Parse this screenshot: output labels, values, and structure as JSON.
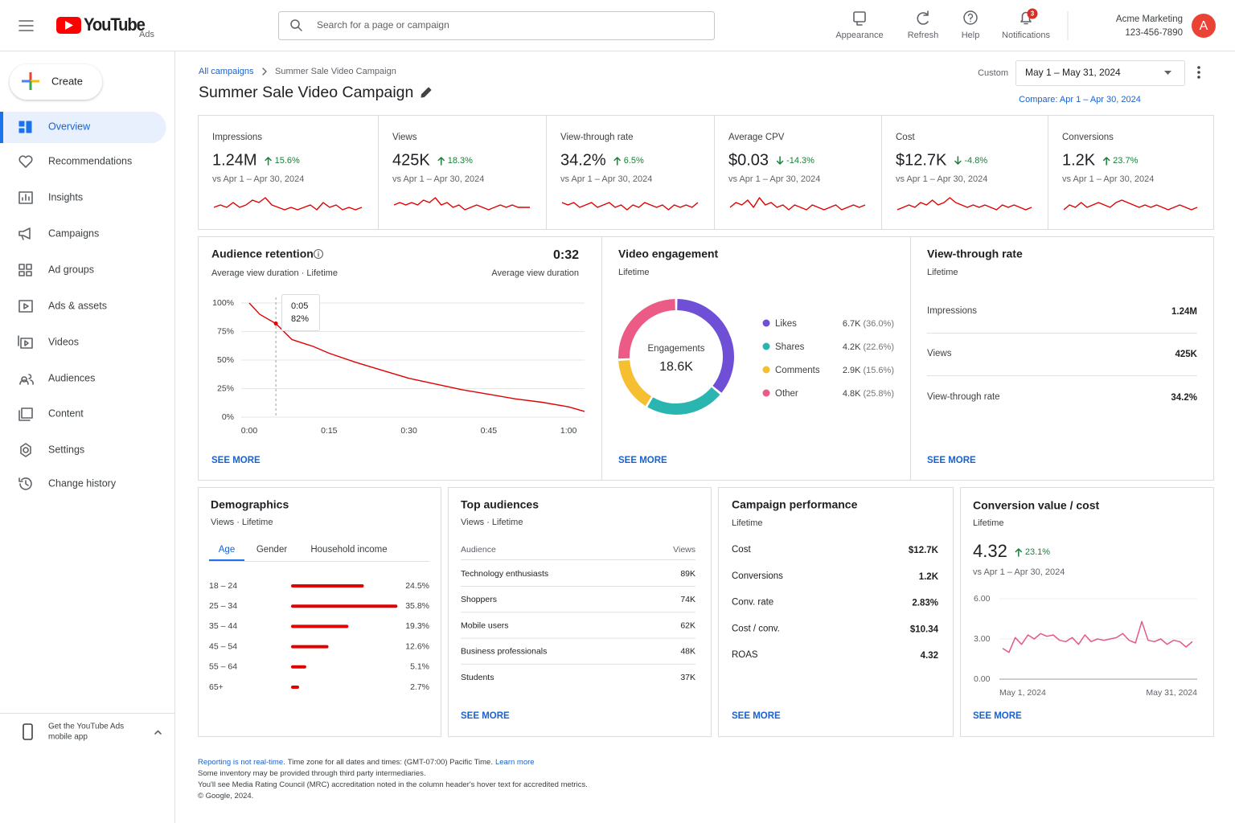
{
  "header": {
    "logo": "YouTube",
    "product": "Ads",
    "search_placeholder": "Search for a page or campaign",
    "actions": [
      {
        "label": "Appearance"
      },
      {
        "label": "Refresh"
      },
      {
        "label": "Help"
      },
      {
        "label": "Notifications",
        "badge": 3
      }
    ],
    "account_name": "Acme Marketing",
    "account_id": "123-456-7890",
    "avatar": "A"
  },
  "sidebar": {
    "create": "Create",
    "nav": [
      {
        "label": "Overview",
        "active": true
      },
      {
        "label": "Recommendations",
        "active": false
      },
      {
        "label": "Insights",
        "active": false
      },
      {
        "label": "Campaigns",
        "active": false
      },
      {
        "label": "Ad groups",
        "active": false
      },
      {
        "label": "Ads & assets",
        "active": false
      },
      {
        "label": "Videos",
        "active": false
      },
      {
        "label": "Audiences",
        "active": false
      },
      {
        "label": "Content",
        "active": false
      },
      {
        "label": "Settings",
        "active": false
      },
      {
        "label": "Change history",
        "active": false
      }
    ],
    "app_promo": [
      "Get the YouTube Ads",
      "mobile app"
    ]
  },
  "breadcrumb": [
    "All campaigns",
    "Summer Sale Video Campaign"
  ],
  "title": "Summer Sale Video Campaign",
  "date_range": {
    "label": "Custom",
    "value": "May 1 – May 31, 2024",
    "compare": "Compare: Apr 1 – Apr 30, 2024"
  },
  "kpi_change_color": "#188038",
  "kpis": [
    {
      "label": "Impressions",
      "value": "1.24M",
      "change": 15.6,
      "change_label": "15.6%",
      "comparison": "vs Apr 1 – Apr 30, 2024",
      "sparkline": {
        "ylim": [
          0,
          10
        ],
        "color": "#e00000",
        "values": [
          4,
          5,
          4,
          6,
          4,
          5,
          7,
          6,
          8,
          5,
          4,
          3,
          4,
          3,
          4,
          5,
          3,
          6,
          4,
          5,
          3,
          4,
          3,
          4
        ]
      }
    },
    {
      "label": "Views",
      "value": "425K",
      "change": 18.3,
      "change_label": "18.3%",
      "comparison": "vs Apr 1 – Apr 30, 2024",
      "sparkline": {
        "ylim": [
          0,
          10
        ],
        "color": "#e00000",
        "values": [
          5,
          6,
          5,
          6,
          5,
          7,
          6,
          8,
          5,
          6,
          4,
          5,
          3,
          4,
          5,
          4,
          3,
          4,
          5,
          4,
          5,
          4,
          4,
          4
        ]
      }
    },
    {
      "label": "View-through rate",
      "value": "34.2%",
      "change": 6.5,
      "change_label": "6.5%",
      "comparison": "vs Apr 1 – Apr 30, 2024",
      "sparkline": {
        "ylim": [
          0,
          10
        ],
        "color": "#e00000",
        "values": [
          6,
          5,
          6,
          4,
          5,
          6,
          4,
          5,
          6,
          4,
          5,
          3,
          5,
          4,
          6,
          5,
          4,
          5,
          3,
          5,
          4,
          5,
          4,
          6
        ]
      }
    },
    {
      "label": "Average CPV",
      "value": "$0.03",
      "change": -14.3,
      "change_label": "-14.3%",
      "comparison": "vs Apr 1 – Apr 30, 2024",
      "sparkline": {
        "ylim": [
          0,
          10
        ],
        "color": "#e00000",
        "values": [
          4,
          6,
          5,
          7,
          4,
          8,
          5,
          6,
          4,
          5,
          3,
          5,
          4,
          3,
          5,
          4,
          3,
          4,
          5,
          3,
          4,
          5,
          4,
          5
        ]
      }
    },
    {
      "label": "Cost",
      "value": "$12.7K",
      "change": -4.8,
      "change_label": "-4.8%",
      "comparison": "vs Apr 1 – Apr 30, 2024",
      "sparkline": {
        "ylim": [
          0,
          10
        ],
        "color": "#e00000",
        "values": [
          3,
          4,
          5,
          4,
          6,
          5,
          7,
          5,
          6,
          8,
          6,
          5,
          4,
          5,
          4,
          5,
          4,
          3,
          5,
          4,
          5,
          4,
          3,
          4
        ]
      }
    },
    {
      "label": "Conversions",
      "value": "1.2K",
      "change": 23.7,
      "change_label": "23.7%",
      "comparison": "vs Apr 1 – Apr 30, 2024",
      "sparkline": {
        "ylim": [
          0,
          10
        ],
        "color": "#e00000",
        "values": [
          3,
          5,
          4,
          6,
          4,
          5,
          6,
          5,
          4,
          6,
          7,
          6,
          5,
          4,
          5,
          4,
          5,
          4,
          3,
          4,
          5,
          4,
          3,
          4
        ]
      }
    }
  ],
  "retention": {
    "title": "Audience retention",
    "subtitle": "Average view duration · Lifetime",
    "summary_value": "0:32",
    "summary_label": "Average view duration",
    "chart": {
      "type": "line",
      "color": "#e00000",
      "x": [
        0,
        2,
        5,
        8,
        12,
        15,
        20,
        25,
        30,
        35,
        40,
        45,
        50,
        55,
        60,
        63
      ],
      "values": [
        100,
        90,
        82,
        68,
        62,
        56,
        48,
        41,
        34,
        29,
        24,
        20,
        16,
        13,
        9,
        5
      ],
      "xlim": [
        0,
        63
      ],
      "ylim": [
        0,
        100
      ],
      "xticks": [
        {
          "value": 0,
          "label": "0:00"
        },
        {
          "value": 15,
          "label": "0:15"
        },
        {
          "value": 30,
          "label": "0:30"
        },
        {
          "value": 45,
          "label": "0:45"
        },
        {
          "value": 60,
          "label": "1:00"
        }
      ],
      "yticks": [
        {
          "value": 0,
          "label": "0%"
        },
        {
          "value": 25,
          "label": "25%"
        },
        {
          "value": 50,
          "label": "50%"
        },
        {
          "value": 75,
          "label": "75%"
        },
        {
          "value": 100,
          "label": "100%"
        }
      ],
      "grid": true,
      "tooltip": {
        "x": 5,
        "x_label": "0:05",
        "value": 82,
        "value_label": "82%"
      }
    },
    "link": "SEE MORE"
  },
  "engagement": {
    "title": "Video engagement",
    "subtitle": "Lifetime",
    "center_label": "Engagements",
    "center_value": "18.6K",
    "chart": {
      "type": "pie",
      "series": [
        {
          "name": "Likes",
          "color": "#6f4fd6",
          "count": "6.7K",
          "value": 36.0,
          "value_label": "(36.0%)"
        },
        {
          "name": "Shares",
          "color": "#2bb5b0",
          "count": "4.2K",
          "value": 22.6,
          "value_label": "(22.6%)"
        },
        {
          "name": "Comments",
          "color": "#f6bf32",
          "count": "2.9K",
          "value": 15.6,
          "value_label": "(15.6%)"
        },
        {
          "name": "Other",
          "color": "#ec5a86",
          "count": "4.8K",
          "value": 25.8,
          "value_label": "(25.8%)"
        }
      ]
    },
    "link": "SEE MORE"
  },
  "vtr": {
    "title": "View-through rate",
    "subtitle": "Lifetime",
    "rows": [
      {
        "label": "Impressions",
        "value": "1.24M"
      },
      {
        "label": "Views",
        "value": "425K"
      },
      {
        "label": "View-through rate",
        "value": "34.2%"
      }
    ],
    "link": "SEE MORE"
  },
  "demographics": {
    "title": "Demographics",
    "subtitle": "Views · Lifetime",
    "tabs": [
      {
        "label": "Age",
        "active": true
      },
      {
        "label": "Gender",
        "active": false
      },
      {
        "label": "Household income",
        "active": false
      }
    ],
    "chart": {
      "type": "bar",
      "orientation": "horizontal",
      "color": "#e00000",
      "categories": [
        "18 – 24",
        "25 – 34",
        "35 – 44",
        "45 – 54",
        "55 – 64",
        "65+"
      ],
      "values": [
        24.5,
        35.8,
        19.3,
        12.6,
        5.1,
        2.7
      ],
      "value_labels": [
        "24.5%",
        "35.8%",
        "19.3%",
        "12.6%",
        "5.1%",
        "2.7%"
      ],
      "xlim": [
        0,
        36
      ]
    }
  },
  "top_audiences": {
    "title": "Top audiences",
    "subtitle": "Views · Lifetime",
    "columns": [
      "Audience",
      "Views"
    ],
    "rows": [
      [
        "Technology enthusiasts",
        "89K"
      ],
      [
        "Shoppers",
        "74K"
      ],
      [
        "Mobile users",
        "62K"
      ],
      [
        "Business professionals",
        "48K"
      ],
      [
        "Students",
        "37K"
      ]
    ],
    "link": "SEE MORE"
  },
  "campaign_performance": {
    "title": "Campaign performance",
    "subtitle": "Lifetime",
    "rows": [
      {
        "label": "Cost",
        "value": "$12.7K"
      },
      {
        "label": "Conversions",
        "value": "1.2K"
      },
      {
        "label": "Conv. rate",
        "value": "2.83%"
      },
      {
        "label": "Cost / conv.",
        "value": "$10.34"
      },
      {
        "label": "ROAS",
        "value": "4.32"
      }
    ],
    "link": "SEE MORE"
  },
  "conversion": {
    "title": "Conversion value / cost",
    "subtitle": "Lifetime",
    "value": "4.32",
    "change": 23.1,
    "change_label": "23.1%",
    "comparison": "vs Apr 1 – Apr 30, 2024",
    "chart": {
      "type": "line",
      "color": "#e4578a",
      "categories": [
        "May 1, 2024",
        null,
        null,
        null,
        null,
        null,
        null,
        null,
        null,
        null,
        null,
        null,
        null,
        null,
        null,
        null,
        null,
        null,
        null,
        null,
        null,
        null,
        null,
        null,
        null,
        null,
        null,
        null,
        null,
        null,
        "May 31, 2024"
      ],
      "values": [
        2.3,
        2.0,
        3.1,
        2.6,
        3.3,
        3.0,
        3.4,
        3.2,
        3.3,
        2.9,
        2.8,
        3.1,
        2.6,
        3.3,
        2.8,
        3.0,
        2.9,
        3.0,
        3.1,
        3.4,
        2.9,
        2.7,
        4.3,
        2.9,
        2.8,
        3.0,
        2.6,
        2.9,
        2.8,
        2.4,
        2.8
      ],
      "ylim": [
        0,
        6
      ],
      "yticks": [
        {
          "value": 0,
          "label": "0.00"
        },
        {
          "value": 3,
          "label": "3.00"
        },
        {
          "value": 6,
          "label": "6.00"
        }
      ],
      "grid": true
    },
    "link": "SEE MORE"
  },
  "footer": [
    [
      {
        "text": "Reporting is not real-time.",
        "link": true
      },
      {
        "text": "Time zone for all dates and times: (GMT-07:00) Pacific Time.",
        "link": false
      },
      {
        "text": "Learn more",
        "link": true
      }
    ],
    [
      {
        "text": "Some inventory may be provided through third party intermediaries.",
        "link": false
      }
    ],
    [
      {
        "text": "You'll see Media Rating Council (MRC) accreditation noted in the column header's hover text for accredited metrics.",
        "link": false
      }
    ],
    [
      {
        "text": "© Google, 2024.",
        "link": false
      }
    ]
  ]
}
